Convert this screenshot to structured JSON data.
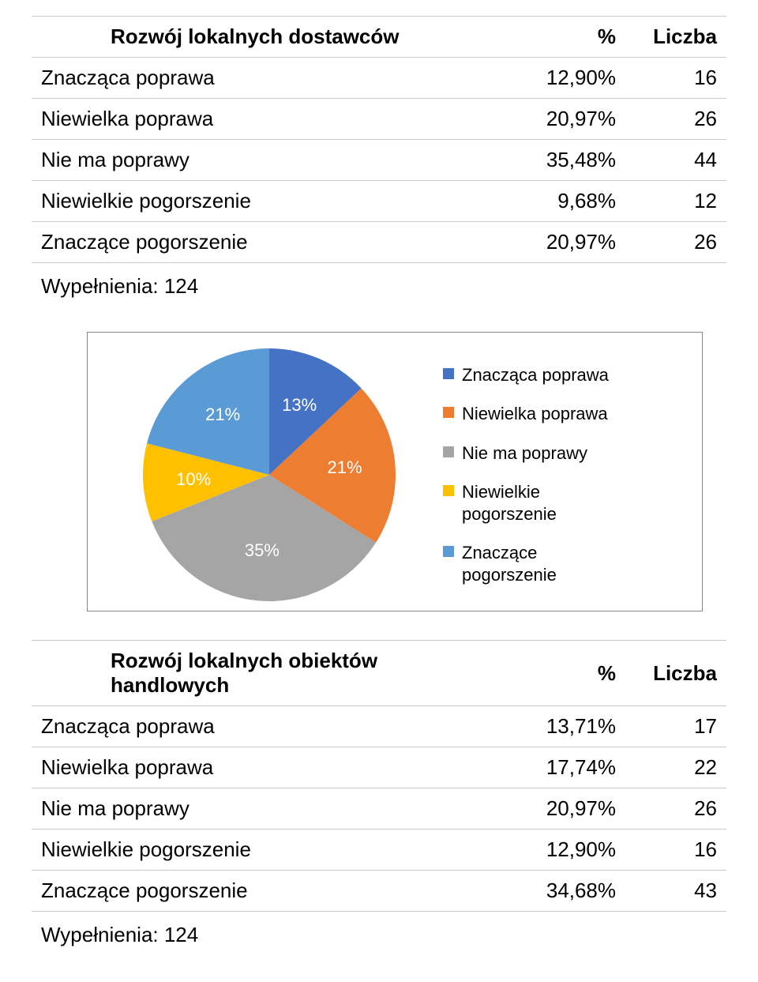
{
  "table1": {
    "title": "Rozwój lokalnych dostawców",
    "col_pct": "%",
    "col_cnt": "Liczba",
    "rows": [
      {
        "label": "Znacząca poprawa",
        "pct": "12,90%",
        "cnt": "16"
      },
      {
        "label": "Niewielka poprawa",
        "pct": "20,97%",
        "cnt": "26"
      },
      {
        "label": "Nie ma poprawy",
        "pct": "35,48%",
        "cnt": "44"
      },
      {
        "label": "Niewielkie pogorszenie",
        "pct": "9,68%",
        "cnt": "12"
      },
      {
        "label": "Znaczące pogorszenie",
        "pct": "20,97%",
        "cnt": "26"
      }
    ],
    "footnote": "Wypełnienia: 124"
  },
  "chart": {
    "type": "pie",
    "background_color": "#ffffff",
    "border_color": "#888888",
    "label_color": "#ffffff",
    "label_fontsize": 22,
    "legend_fontsize": 22,
    "aspect": 1,
    "slices": [
      {
        "label": "Znacząca poprawa",
        "value": 13,
        "text": "13%",
        "color": "#4472c4"
      },
      {
        "label": "Niewielka poprawa",
        "value": 21,
        "text": "21%",
        "color": "#ed7d31"
      },
      {
        "label": "Nie ma poprawy",
        "value": 35,
        "text": "35%",
        "color": "#a5a5a5"
      },
      {
        "label": "Niewielkie pogorszenie",
        "value": 10,
        "text": "10%",
        "color": "#ffc000"
      },
      {
        "label": "Znaczące pogorszenie",
        "value": 21,
        "text": "21%",
        "color": "#5b9bd5"
      }
    ]
  },
  "table2": {
    "title": "Rozwój lokalnych obiektów handlowych",
    "col_pct": "%",
    "col_cnt": "Liczba",
    "rows": [
      {
        "label": "Znacząca poprawa",
        "pct": "13,71%",
        "cnt": "17"
      },
      {
        "label": "Niewielka poprawa",
        "pct": "17,74%",
        "cnt": "22"
      },
      {
        "label": "Nie ma poprawy",
        "pct": "20,97%",
        "cnt": "26"
      },
      {
        "label": "Niewielkie pogorszenie",
        "pct": "12,90%",
        "cnt": "16"
      },
      {
        "label": "Znaczące pogorszenie",
        "pct": "34,68%",
        "cnt": "43"
      }
    ],
    "footnote": "Wypełnienia: 124"
  }
}
